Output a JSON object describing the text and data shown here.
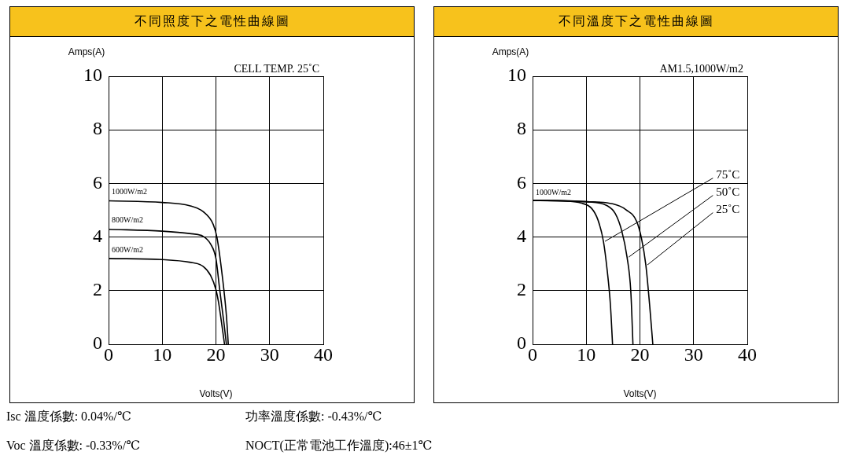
{
  "chart_data": [
    {
      "type": "line",
      "title": "不同照度下之電性曲線圖",
      "xlabel": "Volts(V)",
      "ylabel": "Amps(A)",
      "xlim": [
        0,
        40
      ],
      "ylim": [
        0,
        10
      ],
      "xticks": [
        0,
        10,
        20,
        30,
        40
      ],
      "yticks": [
        0,
        2,
        4,
        6,
        8,
        10
      ],
      "grid": true,
      "legend": false,
      "marker": "none",
      "line_style": "solid",
      "annotations": [
        "CELL TEMP. 25˚C"
      ],
      "series": [
        {
          "name": "1000W/m2",
          "color": "#000000",
          "x": [
            0,
            10,
            15.1,
            17.6,
            19.5,
            20.2,
            21.2,
            21.95,
            22.3
          ],
          "values": [
            5.35,
            5.29,
            5.17,
            4.95,
            4.47,
            3.98,
            2.52,
            1.07,
            0
          ]
        },
        {
          "name": "800W/m2",
          "color": "#000000",
          "x": [
            0,
            10,
            15.1,
            17.6,
            19,
            20,
            20.7,
            21.5,
            21.95
          ],
          "values": [
            4.29,
            4.22,
            4.13,
            4.03,
            3.74,
            3.2,
            2.04,
            0.78,
            0
          ]
        },
        {
          "name": "600W/m2",
          "color": "#000000",
          "x": [
            0,
            10,
            15.1,
            17.6,
            19,
            20,
            20.5,
            21.2,
            21.6
          ],
          "values": [
            3.2,
            3.16,
            3.06,
            2.91,
            2.57,
            2.04,
            1.55,
            0.58,
            0
          ]
        }
      ]
    },
    {
      "type": "line",
      "title": "不同溫度下之電性曲線圖",
      "xlabel": "Volts(V)",
      "ylabel": "Amps(A)",
      "xlim": [
        0,
        40
      ],
      "ylim": [
        0,
        10
      ],
      "xticks": [
        0,
        10,
        20,
        30,
        40
      ],
      "yticks": [
        0,
        2,
        4,
        6,
        8,
        10
      ],
      "grid": true,
      "legend": false,
      "marker": "none",
      "line_style": "solid",
      "annotations": [
        "AM1.5,1000W/m2",
        "1000W/m2"
      ],
      "series": [
        {
          "name": "75˚C",
          "color": "#000000",
          "x": [
            0,
            6.6,
            9,
            11,
            12.2,
            13.2,
            13.9,
            14.5,
            14.9
          ],
          "values": [
            5.37,
            5.34,
            5.27,
            5.07,
            4.63,
            3.84,
            2.76,
            1.48,
            0
          ]
        },
        {
          "name": "50˚C",
          "color": "#000000",
          "x": [
            0,
            10,
            13.9,
            15.4,
            16.6,
            17.6,
            18.3,
            18.7
          ],
          "values": [
            5.37,
            5.32,
            5.17,
            4.88,
            4.24,
            3.25,
            1.97,
            0
          ]
        },
        {
          "name": "25˚C",
          "color": "#000000",
          "x": [
            0,
            10,
            14.9,
            17.4,
            19.4,
            20.3,
            21.1,
            21.8,
            22.4
          ],
          "values": [
            5.37,
            5.32,
            5.24,
            5.02,
            4.58,
            3.94,
            2.96,
            1.48,
            0
          ]
        }
      ]
    },
    {
      "type": "other",
      "annotations": [
        "Isc 溫度係數: 0.04%/℃",
        "功率溫度係數: -0.43%/℃",
        "Voc 溫度係數: -0.33%/℃",
        "NOCT(正常電池工作溫度):46±1℃"
      ]
    }
  ]
}
